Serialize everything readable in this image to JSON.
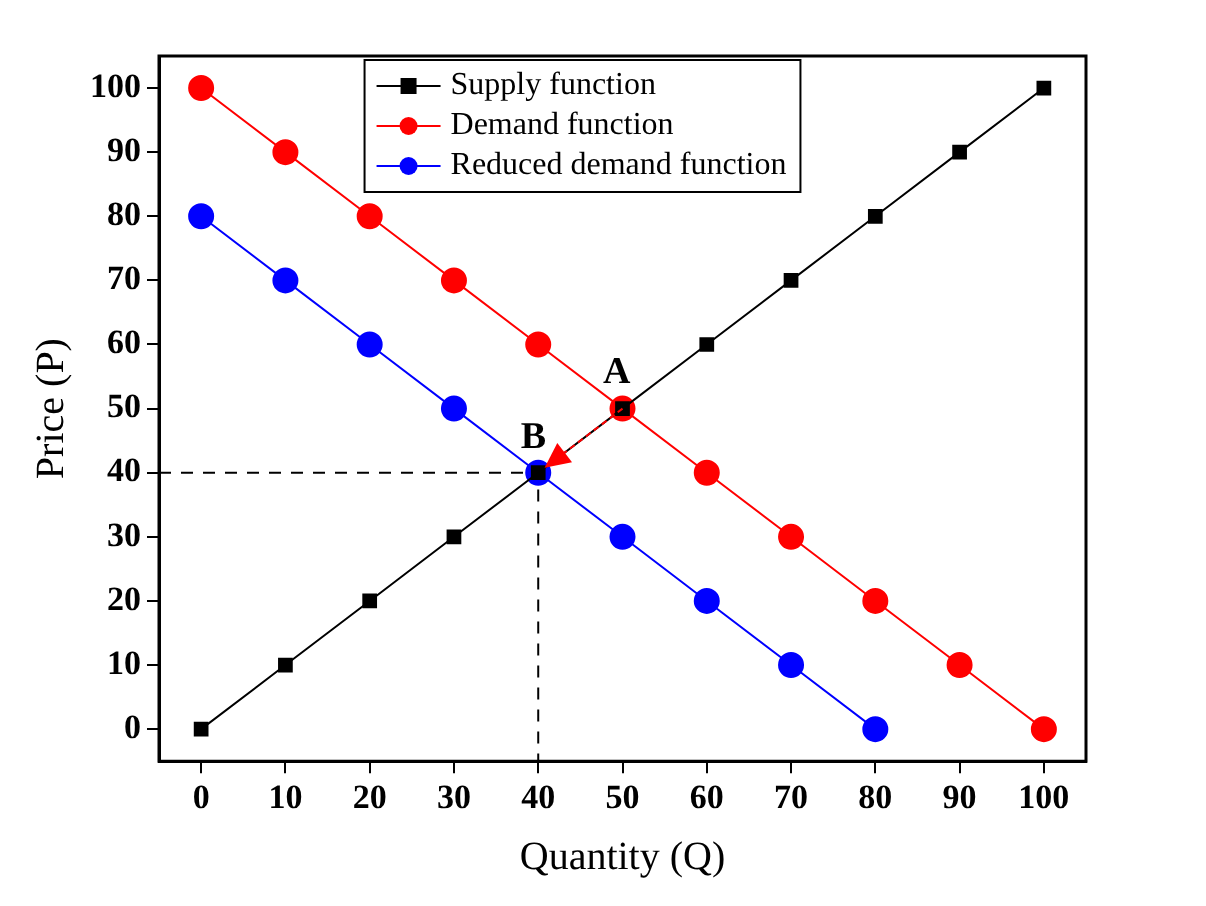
{
  "chart_data": {
    "type": "line",
    "xlabel": "Quantity (Q)",
    "ylabel": "Price (P)",
    "x": [
      0,
      10,
      20,
      30,
      40,
      50,
      60,
      70,
      80,
      90,
      100
    ],
    "xlim": [
      -5,
      105
    ],
    "ylim": [
      -5,
      105
    ],
    "xticks": [
      0,
      10,
      20,
      30,
      40,
      50,
      60,
      70,
      80,
      90,
      100
    ],
    "yticks": [
      0,
      10,
      20,
      30,
      40,
      50,
      60,
      70,
      80,
      90,
      100
    ],
    "grid": false,
    "legend": "top",
    "annotations": [
      {
        "text": "A",
        "x": 50,
        "y": 50
      },
      {
        "text": "B",
        "x": 40,
        "y": 40
      }
    ],
    "series": [
      {
        "name": "Supply function",
        "color": "#000000",
        "marker": "square",
        "values": [
          0,
          10,
          20,
          30,
          40,
          50,
          60,
          70,
          80,
          90,
          100
        ]
      },
      {
        "name": "Demand function",
        "color": "#ff0000",
        "marker": "circle",
        "values": [
          100,
          90,
          80,
          70,
          60,
          50,
          40,
          30,
          20,
          10,
          0
        ]
      },
      {
        "name": "Reduced demand function",
        "color": "#0000ff",
        "marker": "circle",
        "x": [
          0,
          10,
          20,
          30,
          40,
          50,
          60,
          70,
          80
        ],
        "values": [
          80,
          70,
          60,
          50,
          40,
          30,
          20,
          10,
          0
        ]
      },
      {
        "type": "line",
        "color": "#000000",
        "marker": "none",
        "line_style": "dashed",
        "x": [
          -5,
          40,
          40
        ],
        "values": [
          40,
          40,
          -5
        ]
      }
    ]
  }
}
